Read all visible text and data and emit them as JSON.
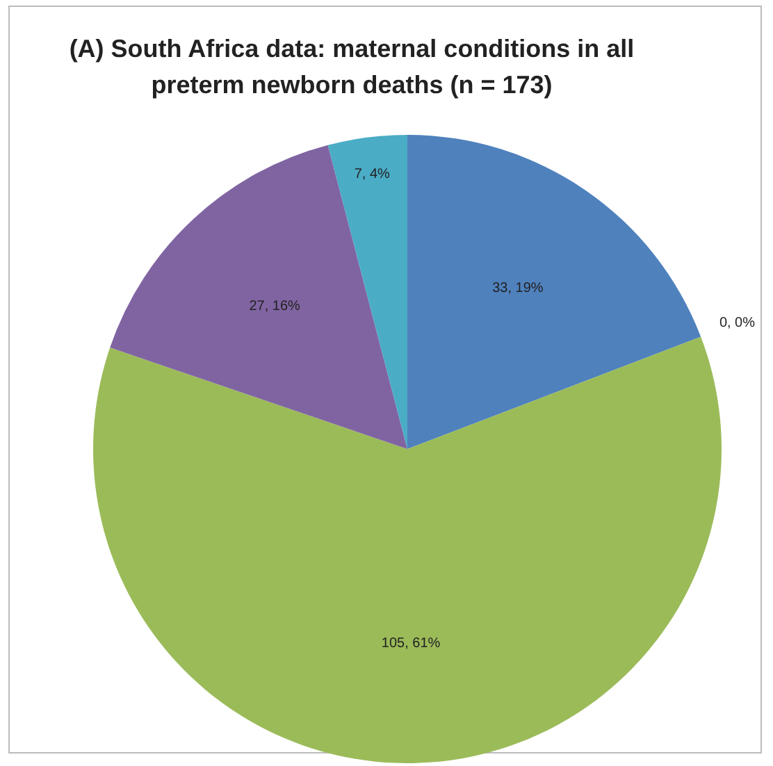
{
  "chart_data": {
    "type": "pie",
    "title": "(A) South Africa data: maternal conditions in all preterm newborn deaths (n = 173)",
    "categories": [
      null,
      null,
      null,
      null,
      null
    ],
    "values": [
      33,
      0,
      105,
      27,
      7
    ],
    "colors": [
      "#4f81bd",
      "#c0504d",
      "#9bbb59",
      "#8064a2",
      "#4bacc6"
    ],
    "value_labels": [
      "33, 19%",
      "0, 0%",
      "105, 61%",
      "27, 16%",
      "7, 4%"
    ],
    "legend": false
  }
}
